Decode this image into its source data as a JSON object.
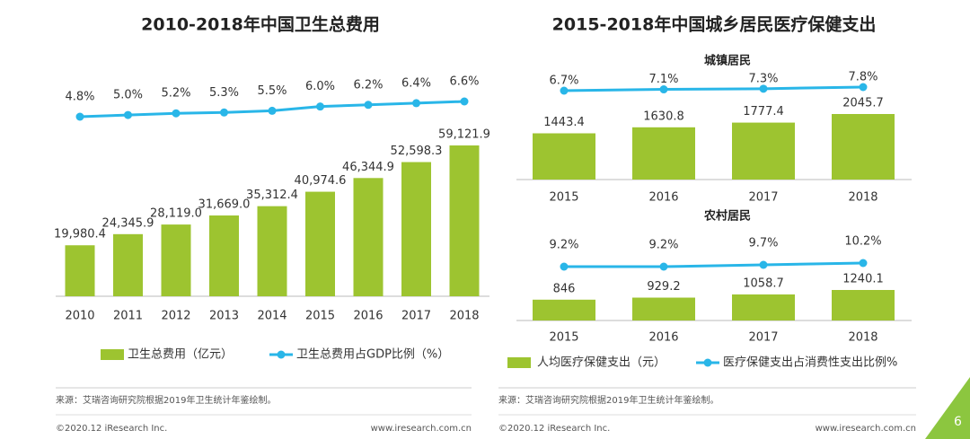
{
  "chart_data": [
    {
      "type": "combo",
      "title": "2010-2018年中国卫生总费用",
      "categories": [
        "2010",
        "2011",
        "2012",
        "2013",
        "2014",
        "2015",
        "2016",
        "2017",
        "2018"
      ],
      "series": [
        {
          "name": "卫生总费用（亿元）",
          "type": "bar",
          "color": "#9dc430",
          "values": [
            19980.4,
            24345.9,
            28119.0,
            31669.0,
            35312.4,
            40974.6,
            46344.9,
            52598.3,
            59121.9
          ],
          "value_labels": [
            "19,980.4",
            "24,345.9",
            "28,119.0",
            "31,669.0",
            "35,312.4",
            "40,974.6",
            "46,344.9",
            "52,598.3",
            "59,121.9"
          ]
        },
        {
          "name": "卫生总费用占GDP比例（%）",
          "type": "line",
          "color": "#29b6e8",
          "values": [
            4.8,
            5.0,
            5.2,
            5.3,
            5.5,
            6.0,
            6.2,
            6.4,
            6.6
          ],
          "value_labels": [
            "4.8%",
            "5.0%",
            "5.2%",
            "5.3%",
            "5.5%",
            "6.0%",
            "6.2%",
            "6.4%",
            "6.6%"
          ]
        }
      ]
    },
    {
      "type": "combo",
      "title": "2015-2018年中国城乡居民医疗保健支出",
      "subtitle": "城镇居民",
      "categories": [
        "2015",
        "2016",
        "2017",
        "2018"
      ],
      "series": [
        {
          "type": "bar",
          "color": "#9dc430",
          "values": [
            1443.4,
            1630.8,
            1777.4,
            2045.7
          ]
        },
        {
          "type": "line",
          "color": "#29b6e8",
          "values": [
            6.7,
            7.1,
            7.3,
            7.8
          ],
          "value_labels": [
            "6.7%",
            "7.1%",
            "7.3%",
            "7.8%"
          ]
        }
      ]
    },
    {
      "type": "combo",
      "subtitle": "农村居民",
      "categories": [
        "2015",
        "2016",
        "2017",
        "2018"
      ],
      "series": [
        {
          "name": "人均医疗保健支出（元）",
          "type": "bar",
          "color": "#9dc430",
          "values": [
            846,
            929.2,
            1058.7,
            1240.1
          ]
        },
        {
          "name": "医疗保健支出占消费性支出比例%",
          "type": "line",
          "color": "#29b6e8",
          "values": [
            9.2,
            9.2,
            9.7,
            10.2
          ],
          "value_labels": [
            "9.2%",
            "9.2%",
            "9.7%",
            "10.2%"
          ]
        }
      ]
    }
  ],
  "footer": {
    "left": {
      "source": "来源：艾瑞咨询研究院根据2019年卫生统计年鉴绘制。",
      "copyright": "©2020.12 iResearch Inc.",
      "url": "www.iresearch.com.cn"
    },
    "right": {
      "source": "来源：艾瑞咨询研究院根据2019年卫生统计年鉴绘制。",
      "copyright": "©2020.12 iResearch Inc.",
      "url": "www.iresearch.com.cn"
    }
  },
  "page_number": "6"
}
